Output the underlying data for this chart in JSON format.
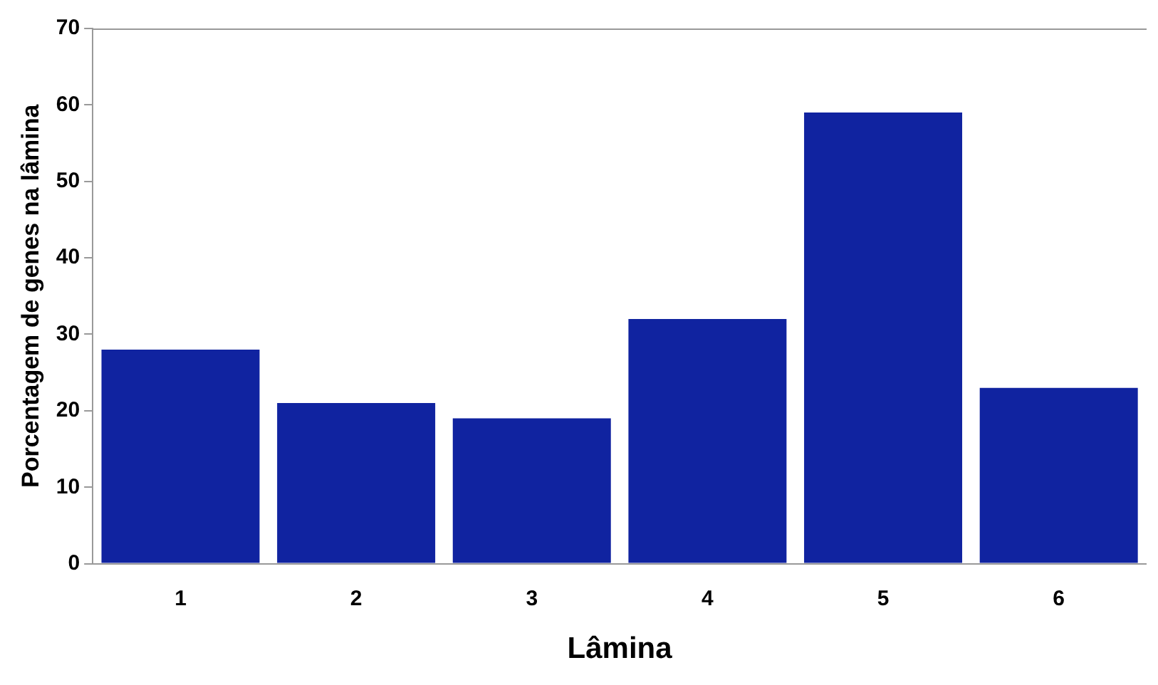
{
  "chart_data": {
    "type": "bar",
    "xlabel": "Lâmina",
    "ylabel": "Porcentagem de genes na lâmina",
    "categories": [
      "1",
      "2",
      "3",
      "4",
      "5",
      "6"
    ],
    "values": [
      28,
      21,
      19,
      32,
      59,
      23
    ],
    "color": "#1023a0",
    "ylim": [
      0,
      70
    ],
    "yticks": [
      0,
      10,
      20,
      30,
      40,
      50,
      60,
      70
    ],
    "grid": false,
    "legend": false
  }
}
